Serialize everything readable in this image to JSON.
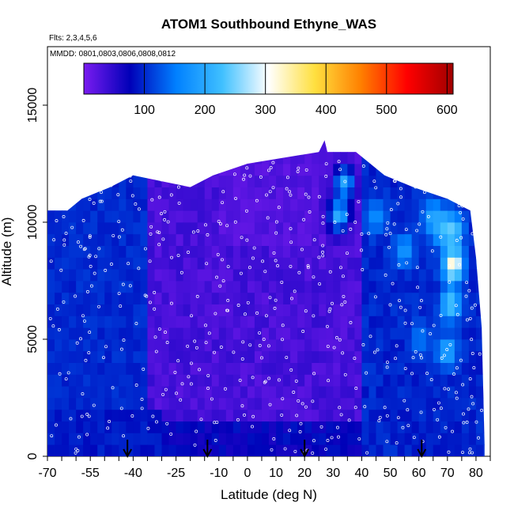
{
  "chart_data": {
    "type": "heatmap",
    "title": "ATOM1 Southbound Ethyne_WAS",
    "subtitle_flights": "Flts: 2,3,4,5,6",
    "subtitle_dates": "MMDD: 0801,0803,0806,0808,0812",
    "xlabel": "Latitude (deg N)",
    "ylabel": "Altitude (m)",
    "xlim": [
      -70,
      85
    ],
    "ylim": [
      0,
      17500
    ],
    "x_ticks": [
      -70,
      -55,
      -40,
      -25,
      -10,
      0,
      10,
      20,
      30,
      40,
      50,
      60,
      70,
      80
    ],
    "y_ticks": [
      0,
      5000,
      10000,
      15000
    ],
    "colorbar": {
      "range": [
        0,
        610
      ],
      "ticks": [
        100,
        200,
        300,
        400,
        500,
        600
      ],
      "colors": [
        "#7a1cf0",
        "#0000b8",
        "#0080ff",
        "#40c0ff",
        "#ffffff",
        "#ffe040",
        "#ff8000",
        "#ff0000",
        "#a00000"
      ]
    },
    "envelope": [
      {
        "lat": -70,
        "top": 10500
      },
      {
        "lat": -63,
        "top": 10500
      },
      {
        "lat": -58,
        "top": 11000
      },
      {
        "lat": -48,
        "top": 11500
      },
      {
        "lat": -40,
        "top": 12000
      },
      {
        "lat": -20,
        "top": 11500
      },
      {
        "lat": -12,
        "top": 12000
      },
      {
        "lat": 0,
        "top": 12500
      },
      {
        "lat": 25,
        "top": 13000
      },
      {
        "lat": 27,
        "top": 13500
      },
      {
        "lat": 28,
        "top": 13000
      },
      {
        "lat": 38,
        "top": 13000
      },
      {
        "lat": 48,
        "top": 12000
      },
      {
        "lat": 58,
        "top": 11500
      },
      {
        "lat": 70,
        "top": 11000
      },
      {
        "lat": 78,
        "top": 10500
      },
      {
        "lat": 80,
        "top": 8500
      },
      {
        "lat": 82,
        "top": 5500
      },
      {
        "lat": 83,
        "top": 500
      }
    ],
    "hotspots": [
      {
        "lat": 72,
        "alt": 8200,
        "value": 330
      },
      {
        "lat": 71,
        "alt": 6500,
        "value": 240
      },
      {
        "lat": 70,
        "alt": 4500,
        "value": 200
      },
      {
        "lat": 68,
        "alt": 9800,
        "value": 220
      },
      {
        "lat": 72,
        "alt": 9600,
        "value": 250
      },
      {
        "lat": 65,
        "alt": 10200,
        "value": 200
      },
      {
        "lat": 32,
        "alt": 10300,
        "value": 210
      },
      {
        "lat": 34,
        "alt": 11700,
        "value": 200
      },
      {
        "lat": 55,
        "alt": 8800,
        "value": 180
      },
      {
        "lat": 45,
        "alt": 10300,
        "value": 170
      },
      {
        "lat": 60,
        "alt": 5000,
        "value": 150
      }
    ],
    "flight_markers_lat": [
      -42,
      -14,
      20,
      61
    ]
  }
}
